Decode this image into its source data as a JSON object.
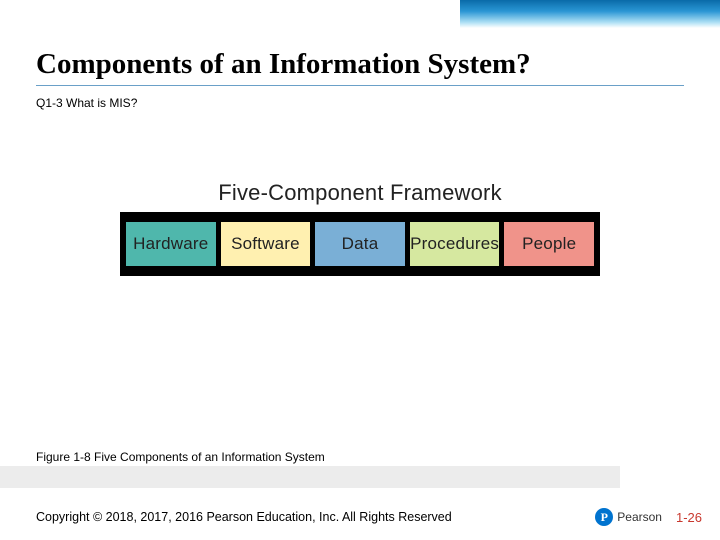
{
  "slide": {
    "title": "Components of an Information System?",
    "subtitle": "Q1-3 What is MIS?",
    "caption": "Figure 1-8 Five Components of an Information System",
    "copyright": "Copyright © 2018, 2017, 2016 Pearson Education, Inc. All Rights Reserved",
    "page_number": "1-26"
  },
  "framework": {
    "heading": "Five-Component Framework",
    "strip_background": "#000000",
    "components": [
      {
        "label": "Hardware",
        "bg": "#4fb7ac"
      },
      {
        "label": "Software",
        "bg": "#fff0b0"
      },
      {
        "label": "Data",
        "bg": "#7aafd6"
      },
      {
        "label": "Procedures",
        "bg": "#d6e8a0"
      },
      {
        "label": "People",
        "bg": "#f0938a"
      }
    ]
  },
  "logo": {
    "letter": "P",
    "brand": "Pearson",
    "circle_color": "#0073cf"
  },
  "colors": {
    "title_underline": "#6aa0c8",
    "pagenum_color": "#c8382e",
    "gray_bar": "#ececec"
  }
}
